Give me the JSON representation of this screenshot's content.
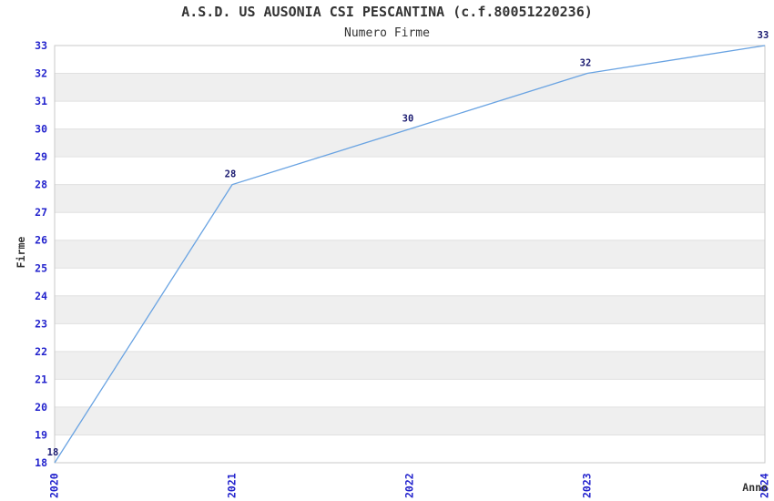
{
  "chart_data": {
    "type": "line",
    "title": "A.S.D. US AUSONIA CSI PESCANTINA (c.f.80051220236)",
    "subtitle": "Numero Firme",
    "xlabel": "Anno",
    "ylabel": "Firme",
    "categories": [
      "2020",
      "2021",
      "2022",
      "2023",
      "2024"
    ],
    "series": [
      {
        "name": "Numero Firme",
        "values": [
          18,
          28,
          30,
          32,
          33
        ]
      }
    ],
    "data_labels": [
      "18",
      "28",
      "30",
      "32",
      "33"
    ],
    "ylim": [
      18,
      33
    ],
    "ytick_step": 1,
    "yticks": [
      18,
      19,
      20,
      21,
      22,
      23,
      24,
      25,
      26,
      27,
      28,
      29,
      30,
      31,
      32,
      33
    ],
    "grid": true,
    "legend_position": "none",
    "plot_background": "alternating horizontal bands"
  },
  "colors": {
    "line": "#69A3E2",
    "tick_label": "#2323CD",
    "data_label": "#1A1A70",
    "band": "#EFEFEF",
    "grid": "#E0E0E0",
    "frame": "#C9C9C9",
    "text": "#333333",
    "background": "#FFFFFF"
  }
}
